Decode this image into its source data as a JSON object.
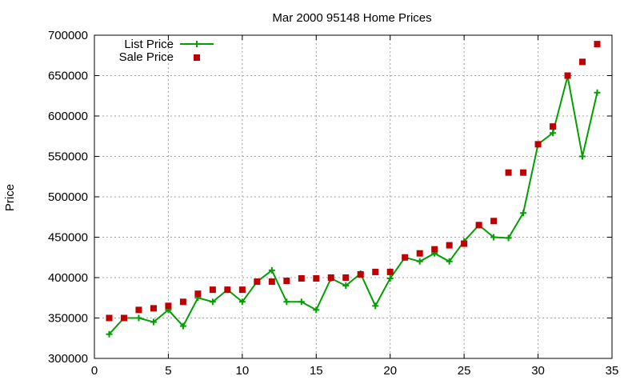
{
  "chart_data": {
    "type": "line",
    "title": "Mar 2000 95148 Home Prices",
    "xlabel": "",
    "ylabel": "Price",
    "xlim": [
      0,
      35
    ],
    "ylim": [
      300000,
      700000
    ],
    "xticks": [
      0,
      5,
      10,
      15,
      20,
      25,
      30,
      35
    ],
    "yticks": [
      300000,
      350000,
      400000,
      450000,
      500000,
      550000,
      600000,
      650000,
      700000
    ],
    "xtick_labels": [
      "0",
      "5",
      "10",
      "15",
      "20",
      "25",
      "30",
      "35"
    ],
    "ytick_labels": [
      "300000",
      "350000",
      "400000",
      "450000",
      "500000",
      "550000",
      "600000",
      "650000",
      "700000"
    ],
    "grid": true,
    "legend_position": "top-left",
    "x": [
      1,
      2,
      3,
      4,
      5,
      6,
      7,
      8,
      9,
      10,
      11,
      12,
      13,
      14,
      15,
      16,
      17,
      18,
      19,
      20,
      21,
      22,
      23,
      24,
      25,
      26,
      27,
      28,
      29,
      30,
      31,
      32,
      33,
      34
    ],
    "series": [
      {
        "name": "List Price",
        "style": "line-with-plus-markers",
        "color": "#00a000",
        "values": [
          330000,
          350000,
          350000,
          345000,
          360000,
          340000,
          375000,
          370000,
          385000,
          370000,
          395000,
          409000,
          370000,
          370000,
          360000,
          399000,
          390000,
          405000,
          365000,
          399000,
          425000,
          420000,
          430000,
          420000,
          445000,
          465000,
          450000,
          449000,
          480000,
          565000,
          579000,
          649000,
          550000,
          629000
        ]
      },
      {
        "name": "Sale Price",
        "style": "square-markers",
        "color": "#c00000",
        "values": [
          350000,
          350000,
          360000,
          362000,
          365000,
          370000,
          380000,
          385000,
          385000,
          385000,
          395000,
          395000,
          396000,
          399000,
          399000,
          400000,
          400000,
          404000,
          407000,
          407000,
          425000,
          430000,
          435000,
          440000,
          442000,
          465000,
          470000,
          530000,
          530000,
          565000,
          587000,
          650000,
          667000,
          689000
        ]
      }
    ]
  }
}
